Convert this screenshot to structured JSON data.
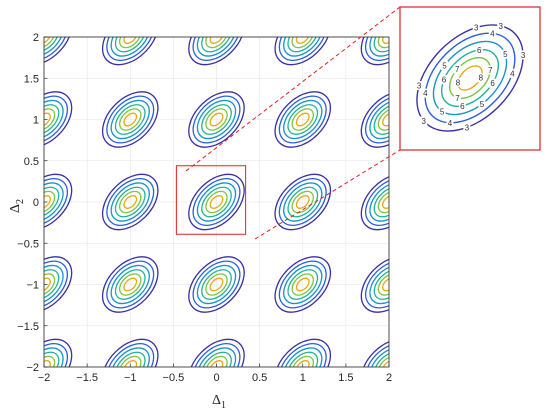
{
  "chart_data": {
    "type": "contour",
    "title": "",
    "xlabel": {
      "symbol": "Δ",
      "subscript": "1"
    },
    "ylabel": {
      "symbol": "Δ",
      "subscript": "2"
    },
    "xlim": [
      -2,
      2
    ],
    "ylim": [
      -2,
      2
    ],
    "xticks": [
      "-2",
      "-1.5",
      "-1",
      "-0.5",
      "0",
      "0.5",
      "1",
      "1.5",
      "2"
    ],
    "yticks": [
      "-2",
      "-1.5",
      "-1",
      "-0.5",
      "0",
      "0.5",
      "1",
      "1.5",
      "2"
    ],
    "grid": true,
    "period": 1,
    "peak_centers_x": [
      -2,
      -1,
      0,
      1,
      2
    ],
    "peak_centers_y": [
      -2,
      -1,
      0,
      1,
      2
    ],
    "contour_levels": [
      3,
      4,
      5,
      6,
      7,
      8
    ],
    "level_colors": [
      "#3b2fa3",
      "#2a5fd6",
      "#1a93c9",
      "#22b29a",
      "#7cc442",
      "#e6a817"
    ],
    "contour_semi_major": [
      0.39,
      0.33,
      0.27,
      0.21,
      0.15,
      0.09
    ],
    "contour_semi_minor": [
      0.25,
      0.21,
      0.17,
      0.13,
      0.095,
      0.055
    ],
    "orientation_deg": 45,
    "zoom_region": {
      "x": [
        -0.5,
        0.5
      ],
      "y": [
        -0.5,
        0.5
      ]
    },
    "inset_labels": [
      "3",
      "3",
      "3",
      "3",
      "3",
      "3",
      "4",
      "4",
      "4",
      "4",
      "5",
      "5",
      "5",
      "5",
      "6",
      "6",
      "6",
      "6",
      "7",
      "7",
      "7",
      "8",
      "8"
    ],
    "highlight_color": "#e02020"
  }
}
